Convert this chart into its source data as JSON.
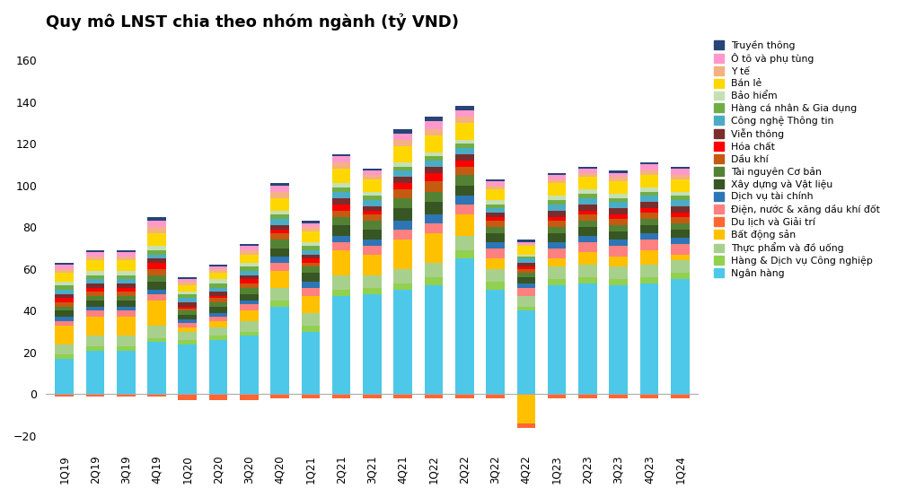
{
  "title": "Quy mô LNST chia theo nhóm ngành (tỷ VND)",
  "quarters": [
    "1Q19",
    "2Q19",
    "3Q19",
    "4Q19",
    "1Q20",
    "2Q20",
    "3Q20",
    "4Q20",
    "1Q21",
    "2Q21",
    "3Q21",
    "4Q21",
    "1Q22",
    "2Q22",
    "3Q22",
    "4Q22",
    "1Q23",
    "2Q23",
    "3Q23",
    "4Q23",
    "1Q24"
  ],
  "ylim": [
    -25,
    170
  ],
  "yticks": [
    -20,
    0,
    20,
    40,
    60,
    80,
    100,
    120,
    140,
    160
  ],
  "sectors": [
    "Ngân hàng",
    "Hàng & Dịch vụ Công nghiệp",
    "Thực phẩm và đồ uống",
    "Bất động sản",
    "Du lịch và Giải trí",
    "Điện, nước & xăng dầu khí đốt",
    "Dịch vụ tài chính",
    "Xây dựng và Vật liệu",
    "Tài nguyên Cơ bản",
    "Dầu khí",
    "Hóa chất",
    "Viễn thông",
    "Công nghệ Thông tin",
    "Hàng cá nhân & Gia dụng",
    "Bảo hiểm",
    "Bán lẻ",
    "Y tế",
    "Ô tô và phụ tùng",
    "Truyền thông"
  ],
  "colors": [
    "#4DC8E8",
    "#92D050",
    "#A8D08D",
    "#FFC000",
    "#FF6633",
    "#FF8080",
    "#2E75B6",
    "#375623",
    "#548235",
    "#C55A11",
    "#FF0000",
    "#7B2C2C",
    "#4BACC6",
    "#70AD47",
    "#C5E0B4",
    "#FFD700",
    "#F4B183",
    "#FF99CC",
    "#264478"
  ],
  "data": {
    "Ngân hàng": [
      17,
      21,
      21,
      25,
      24,
      26,
      28,
      42,
      30,
      47,
      48,
      50,
      52,
      65,
      50,
      40,
      52,
      53,
      52,
      53,
      55
    ],
    "Hàng & Dịch vụ Công nghiệp": [
      2,
      2,
      2,
      2,
      2,
      2,
      2,
      3,
      3,
      3,
      3,
      3,
      4,
      4,
      4,
      2,
      3,
      3,
      3,
      3,
      3
    ],
    "Thực phẩm và đồ uống": [
      5,
      5,
      5,
      6,
      4,
      4,
      5,
      6,
      6,
      7,
      6,
      7,
      7,
      7,
      6,
      5,
      6,
      6,
      6,
      6,
      6
    ],
    "Bất động sản": [
      9,
      9,
      9,
      12,
      2,
      3,
      5,
      8,
      8,
      12,
      10,
      14,
      14,
      10,
      5,
      -14,
      4,
      6,
      5,
      7,
      3
    ],
    "Du lịch và Giải trí": [
      -1,
      -1,
      -1,
      -1,
      -3,
      -3,
      -3,
      -2,
      -2,
      -2,
      -2,
      -2,
      -2,
      -2,
      -2,
      -2,
      -2,
      -2,
      -2,
      -2,
      -2
    ],
    "Điện, nước & xăng dầu khí đốt": [
      2,
      3,
      3,
      3,
      2,
      2,
      3,
      4,
      4,
      4,
      4,
      5,
      5,
      5,
      5,
      4,
      5,
      5,
      5,
      5,
      5
    ],
    "Dịch vụ tài chính": [
      2,
      2,
      2,
      2,
      2,
      2,
      2,
      3,
      3,
      3,
      3,
      4,
      4,
      4,
      3,
      2,
      3,
      3,
      3,
      3,
      3
    ],
    "Xây dựng và Vật liệu": [
      3,
      3,
      3,
      4,
      2,
      3,
      3,
      4,
      4,
      5,
      5,
      6,
      6,
      5,
      4,
      3,
      4,
      4,
      4,
      4,
      4
    ],
    "Tài nguyên Cơ bản": [
      2,
      2,
      2,
      3,
      2,
      2,
      3,
      4,
      3,
      4,
      4,
      5,
      5,
      5,
      3,
      2,
      3,
      3,
      3,
      3,
      3
    ],
    "Dầu khí": [
      2,
      2,
      2,
      3,
      1,
      2,
      2,
      3,
      2,
      3,
      3,
      4,
      5,
      4,
      3,
      2,
      3,
      3,
      3,
      3,
      3
    ],
    "Hóa chất": [
      2,
      2,
      2,
      3,
      1,
      1,
      2,
      2,
      2,
      3,
      2,
      3,
      4,
      3,
      2,
      1,
      2,
      2,
      2,
      2,
      2
    ],
    "Viễn thông": [
      2,
      2,
      2,
      2,
      2,
      2,
      2,
      2,
      2,
      3,
      2,
      3,
      3,
      3,
      2,
      2,
      3,
      3,
      3,
      3,
      3
    ],
    "Công nghệ Thông tin": [
      2,
      2,
      2,
      2,
      2,
      2,
      2,
      3,
      2,
      3,
      3,
      3,
      3,
      3,
      2,
      2,
      3,
      3,
      3,
      3,
      3
    ],
    "Hàng cá nhân & Gia dụng": [
      2,
      2,
      2,
      2,
      2,
      2,
      2,
      2,
      2,
      2,
      2,
      2,
      2,
      2,
      2,
      1,
      2,
      2,
      2,
      2,
      2
    ],
    "Bảo hiểm": [
      2,
      2,
      2,
      2,
      1,
      2,
      2,
      2,
      2,
      2,
      2,
      2,
      2,
      2,
      2,
      1,
      2,
      2,
      2,
      2,
      2
    ],
    "Bán lẻ": [
      4,
      5,
      5,
      6,
      3,
      3,
      4,
      6,
      5,
      7,
      6,
      8,
      8,
      8,
      5,
      4,
      6,
      6,
      6,
      6,
      6
    ],
    "Y tế": [
      2,
      2,
      2,
      3,
      2,
      2,
      2,
      3,
      2,
      3,
      2,
      3,
      3,
      3,
      2,
      1,
      2,
      2,
      2,
      2,
      2
    ],
    "Ô tô và phụ tùng": [
      2,
      2,
      2,
      3,
      1,
      1,
      2,
      3,
      2,
      3,
      2,
      3,
      4,
      3,
      2,
      1,
      2,
      2,
      2,
      3,
      3
    ],
    "Truyền thông": [
      1,
      1,
      1,
      2,
      1,
      1,
      1,
      1,
      1,
      1,
      1,
      2,
      2,
      2,
      1,
      1,
      1,
      1,
      1,
      1,
      1
    ]
  }
}
